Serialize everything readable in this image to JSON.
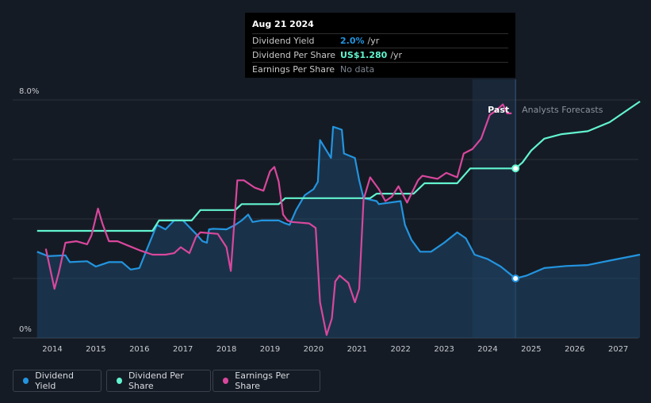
{
  "tooltip": {
    "date": "Aug 21 2024",
    "rows": [
      {
        "label": "Dividend Yield",
        "value": "2.0%",
        "unit": "/yr",
        "color": "#2394df"
      },
      {
        "label": "Dividend Per Share",
        "value": "US$1.280",
        "unit": "/yr",
        "color": "#62f4cf"
      },
      {
        "label": "Earnings Per Share",
        "value": "No data",
        "unit": "",
        "color": "#7e8591"
      }
    ]
  },
  "regions": {
    "past_label": "Past",
    "forecast_label": "Analysts Forecasts"
  },
  "legend": [
    {
      "label": "Dividend Yield",
      "color": "#2394df"
    },
    {
      "label": "Dividend Per Share",
      "color": "#62f4cf"
    },
    {
      "label": "Earnings Per Share",
      "color": "#d9479d"
    }
  ],
  "chart_data": {
    "type": "line",
    "xlim": [
      2013.65,
      2027.5
    ],
    "ylim": [
      0,
      8.0
    ],
    "x_ticks": [
      "2014",
      "2015",
      "2016",
      "2017",
      "2018",
      "2019",
      "2020",
      "2021",
      "2022",
      "2023",
      "2024",
      "2025",
      "2026",
      "2027"
    ],
    "y_ticks": [
      {
        "value": 8.0,
        "label": "8.0%"
      },
      {
        "value": 0,
        "label": "0%"
      }
    ],
    "grid": true,
    "past_region": [
      2023.65,
      2024.64
    ],
    "forecast_start": 2024.64,
    "series": [
      {
        "name": "Dividend Yield",
        "color": "#2394df",
        "area": true,
        "marker_at": [
          2024.64,
          2.0
        ],
        "points": [
          [
            2013.65,
            2.9
          ],
          [
            2013.9,
            2.75
          ],
          [
            2014.3,
            2.78
          ],
          [
            2014.4,
            2.55
          ],
          [
            2014.8,
            2.58
          ],
          [
            2015.0,
            2.4
          ],
          [
            2015.3,
            2.55
          ],
          [
            2015.6,
            2.55
          ],
          [
            2015.8,
            2.3
          ],
          [
            2016.0,
            2.35
          ],
          [
            2016.15,
            2.9
          ],
          [
            2016.4,
            3.8
          ],
          [
            2016.6,
            3.65
          ],
          [
            2016.8,
            3.95
          ],
          [
            2017.0,
            3.95
          ],
          [
            2017.3,
            3.5
          ],
          [
            2017.45,
            3.25
          ],
          [
            2017.55,
            3.2
          ],
          [
            2017.6,
            3.65
          ],
          [
            2017.7,
            3.67
          ],
          [
            2018.0,
            3.65
          ],
          [
            2018.2,
            3.8
          ],
          [
            2018.35,
            3.95
          ],
          [
            2018.5,
            4.15
          ],
          [
            2018.6,
            3.9
          ],
          [
            2018.8,
            3.95
          ],
          [
            2019.2,
            3.95
          ],
          [
            2019.35,
            3.85
          ],
          [
            2019.45,
            3.8
          ],
          [
            2019.6,
            4.3
          ],
          [
            2019.8,
            4.8
          ],
          [
            2020.0,
            5.0
          ],
          [
            2020.1,
            5.25
          ],
          [
            2020.15,
            6.65
          ],
          [
            2020.4,
            6.05
          ],
          [
            2020.45,
            7.1
          ],
          [
            2020.65,
            7.0
          ],
          [
            2020.7,
            6.2
          ],
          [
            2020.95,
            6.05
          ],
          [
            2021.05,
            5.3
          ],
          [
            2021.15,
            4.7
          ],
          [
            2021.45,
            4.6
          ],
          [
            2021.5,
            4.5
          ],
          [
            2022.0,
            4.6
          ],
          [
            2022.1,
            3.8
          ],
          [
            2022.25,
            3.3
          ],
          [
            2022.45,
            2.9
          ],
          [
            2022.7,
            2.9
          ],
          [
            2023.0,
            3.2
          ],
          [
            2023.3,
            3.55
          ],
          [
            2023.5,
            3.35
          ],
          [
            2023.7,
            2.8
          ],
          [
            2024.0,
            2.65
          ],
          [
            2024.3,
            2.4
          ],
          [
            2024.64,
            2.0
          ],
          [
            2024.9,
            2.1
          ],
          [
            2025.3,
            2.35
          ],
          [
            2025.8,
            2.42
          ],
          [
            2026.3,
            2.45
          ],
          [
            2026.8,
            2.6
          ],
          [
            2027.5,
            2.8
          ]
        ]
      },
      {
        "name": "Dividend Per Share",
        "color": "#62f4cf",
        "marker_at": [
          2024.64,
          5.7
        ],
        "points": [
          [
            2013.65,
            3.6
          ],
          [
            2016.3,
            3.6
          ],
          [
            2016.45,
            3.95
          ],
          [
            2017.2,
            3.95
          ],
          [
            2017.4,
            4.3
          ],
          [
            2018.2,
            4.3
          ],
          [
            2018.35,
            4.5
          ],
          [
            2019.2,
            4.5
          ],
          [
            2019.35,
            4.7
          ],
          [
            2021.3,
            4.7
          ],
          [
            2021.45,
            4.85
          ],
          [
            2022.3,
            4.85
          ],
          [
            2022.55,
            5.2
          ],
          [
            2023.3,
            5.2
          ],
          [
            2023.6,
            5.7
          ],
          [
            2024.64,
            5.7
          ],
          [
            2024.8,
            5.9
          ],
          [
            2025.0,
            6.3
          ],
          [
            2025.3,
            6.7
          ],
          [
            2025.7,
            6.85
          ],
          [
            2026.3,
            6.95
          ],
          [
            2026.8,
            7.25
          ],
          [
            2027.5,
            7.95
          ]
        ]
      },
      {
        "name": "Earnings Per Share",
        "color": "#d9479d",
        "points": [
          [
            2013.85,
            3.0
          ],
          [
            2014.05,
            1.65
          ],
          [
            2014.15,
            2.2
          ],
          [
            2014.3,
            3.2
          ],
          [
            2014.55,
            3.25
          ],
          [
            2014.8,
            3.15
          ],
          [
            2014.9,
            3.45
          ],
          [
            2015.05,
            4.35
          ],
          [
            2015.15,
            3.85
          ],
          [
            2015.3,
            3.25
          ],
          [
            2015.5,
            3.25
          ],
          [
            2015.75,
            3.1
          ],
          [
            2016.0,
            2.95
          ],
          [
            2016.3,
            2.8
          ],
          [
            2016.6,
            2.8
          ],
          [
            2016.8,
            2.85
          ],
          [
            2016.95,
            3.05
          ],
          [
            2017.15,
            2.85
          ],
          [
            2017.3,
            3.4
          ],
          [
            2017.4,
            3.55
          ],
          [
            2017.8,
            3.5
          ],
          [
            2018.0,
            3.05
          ],
          [
            2018.1,
            2.25
          ],
          [
            2018.25,
            5.3
          ],
          [
            2018.4,
            5.3
          ],
          [
            2018.65,
            5.05
          ],
          [
            2018.85,
            4.95
          ],
          [
            2019.0,
            5.6
          ],
          [
            2019.1,
            5.75
          ],
          [
            2019.2,
            5.25
          ],
          [
            2019.3,
            4.15
          ],
          [
            2019.4,
            3.95
          ],
          [
            2019.5,
            3.9
          ],
          [
            2019.9,
            3.85
          ],
          [
            2020.05,
            3.7
          ],
          [
            2020.15,
            1.2
          ],
          [
            2020.3,
            0.1
          ],
          [
            2020.42,
            0.65
          ],
          [
            2020.5,
            1.9
          ],
          [
            2020.6,
            2.1
          ],
          [
            2020.8,
            1.85
          ],
          [
            2020.95,
            1.2
          ],
          [
            2021.05,
            1.65
          ],
          [
            2021.15,
            4.65
          ],
          [
            2021.3,
            5.4
          ],
          [
            2021.5,
            5.0
          ],
          [
            2021.65,
            4.6
          ],
          [
            2021.8,
            4.75
          ],
          [
            2021.95,
            5.1
          ],
          [
            2022.15,
            4.55
          ],
          [
            2022.4,
            5.3
          ],
          [
            2022.5,
            5.45
          ],
          [
            2022.85,
            5.35
          ],
          [
            2023.05,
            5.55
          ],
          [
            2023.3,
            5.4
          ],
          [
            2023.45,
            6.2
          ],
          [
            2023.65,
            6.35
          ],
          [
            2023.85,
            6.7
          ],
          [
            2024.05,
            7.5
          ],
          [
            2024.2,
            7.65
          ],
          [
            2024.35,
            7.85
          ],
          [
            2024.45,
            7.55
          ],
          [
            2024.55,
            7.55
          ]
        ]
      }
    ]
  }
}
